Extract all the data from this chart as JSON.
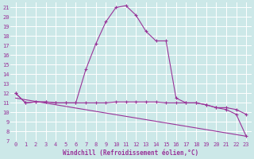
{
  "xlabel": "Windchill (Refroidissement éolien,°C)",
  "bg_color": "#cce8e8",
  "grid_color": "#ffffff",
  "line_color": "#993399",
  "xlim": [
    -0.5,
    23.5
  ],
  "ylim": [
    7,
    21.5
  ],
  "yticks": [
    7,
    8,
    9,
    10,
    11,
    12,
    13,
    14,
    15,
    16,
    17,
    18,
    19,
    20,
    21
  ],
  "xticks": [
    0,
    1,
    2,
    3,
    4,
    5,
    6,
    7,
    8,
    9,
    10,
    11,
    12,
    13,
    14,
    15,
    16,
    17,
    18,
    19,
    20,
    21,
    22,
    23
  ],
  "line1_x": [
    0,
    1,
    2,
    3,
    4,
    5,
    6,
    7,
    8,
    9,
    10,
    11,
    12,
    13,
    14,
    15,
    16,
    17,
    18,
    19,
    20,
    21,
    22,
    23
  ],
  "line1_y": [
    12,
    11,
    11.1,
    11.1,
    11.0,
    11.0,
    11.0,
    11.0,
    11.0,
    11.0,
    11.1,
    11.1,
    11.1,
    11.1,
    11.1,
    11.0,
    11.0,
    11.0,
    11.0,
    10.8,
    10.5,
    10.5,
    10.3,
    9.8
  ],
  "line2_x": [
    0,
    1,
    2,
    3,
    4,
    5,
    6,
    7,
    8,
    9,
    10,
    11,
    12,
    13,
    14,
    15,
    16,
    17,
    18,
    19,
    20,
    21,
    22,
    23
  ],
  "line2_y": [
    12,
    11,
    11.1,
    11.1,
    11.0,
    11.0,
    11.0,
    14.5,
    17.2,
    19.5,
    21.0,
    21.2,
    20.2,
    18.5,
    17.5,
    17.5,
    11.5,
    11.0,
    11.0,
    10.8,
    10.5,
    10.3,
    9.8,
    7.5
  ],
  "line3_x": [
    0,
    23
  ],
  "line3_y": [
    11.5,
    7.5
  ],
  "xlabel_fontsize": 5.5,
  "tick_fontsize": 5.0
}
